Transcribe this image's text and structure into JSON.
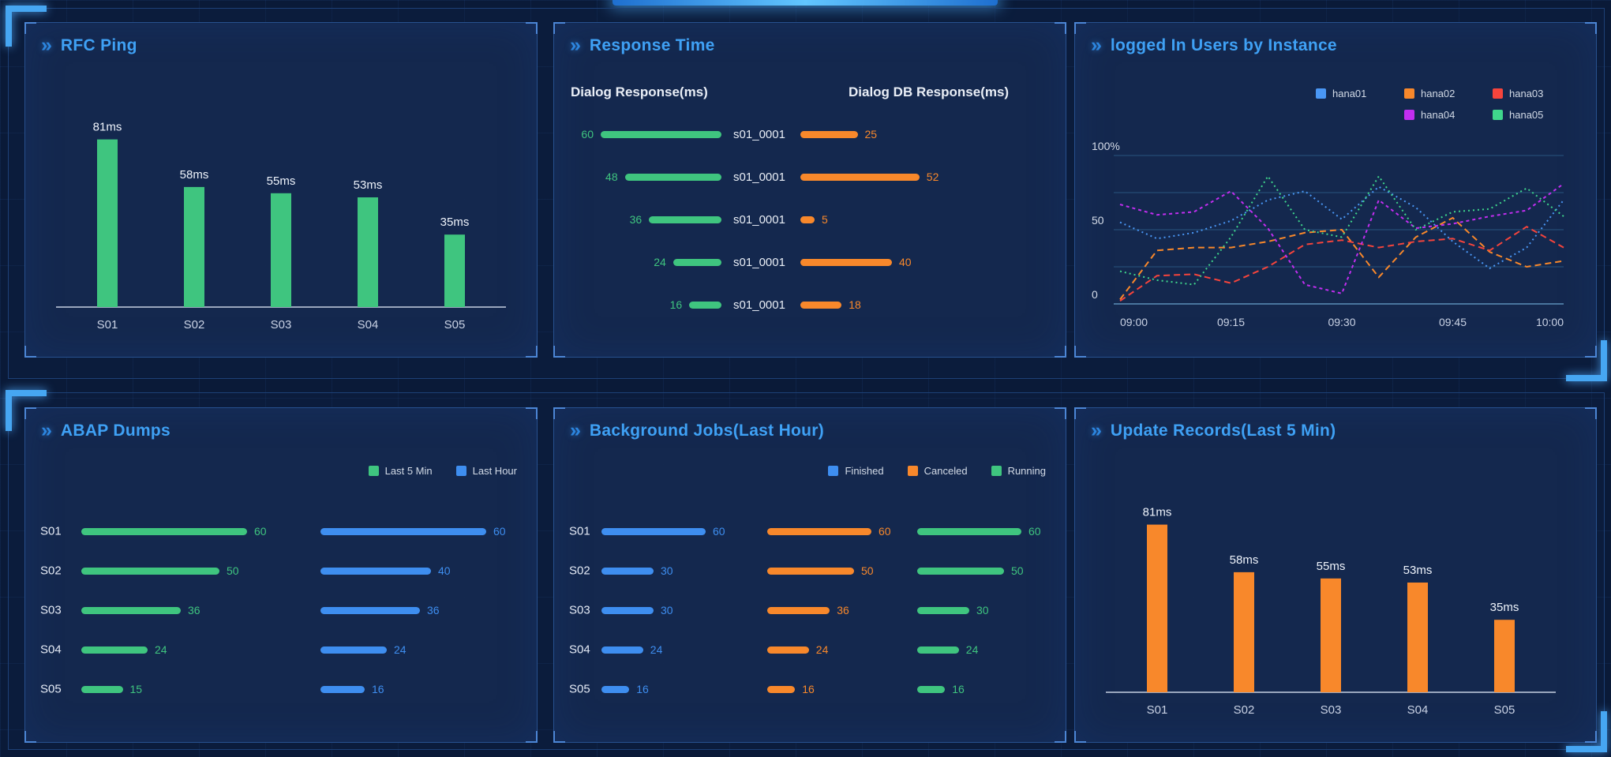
{
  "ui": {
    "chevron": "»"
  },
  "panels": [
    {
      "title": "RFC Ping"
    },
    {
      "title": "Response Time"
    },
    {
      "title": "logged In Users by Instance"
    },
    {
      "title": "ABAP Dumps"
    },
    {
      "title": "Background Jobs(Last Hour)"
    },
    {
      "title": "Update Records(Last 5 Min)"
    }
  ],
  "colors": {
    "green": "#3fc57f",
    "blue": "#3e8ef0",
    "orange": "#f8882b",
    "red": "#f5443c",
    "magenta": "#c22ef0",
    "line_blue": "#4a97f5",
    "line_green": "#3fd68c",
    "title_blue": "#3fa1f5"
  },
  "chart_data": [
    {
      "name": "rfc-ping",
      "type": "bar",
      "title": "RFC Ping",
      "categories": [
        "S01",
        "S02",
        "S03",
        "S04",
        "S05"
      ],
      "values": [
        81,
        58,
        55,
        53,
        35
      ],
      "unit": "ms",
      "value_labels": [
        "81ms",
        "58ms",
        "55ms",
        "53ms",
        "35ms"
      ],
      "color": "#3fc57f",
      "ylim": [
        0,
        90
      ],
      "grid": false
    },
    {
      "name": "response-time",
      "type": "bar-horizontal-dual",
      "title": "Response Time",
      "rows": [
        "s01_0001",
        "s01_0001",
        "s01_0001",
        "s01_0001",
        "s01_0001"
      ],
      "series": [
        {
          "name": "Dialog Response(ms)",
          "color": "#3fc57f",
          "values": [
            60,
            48,
            36,
            24,
            16
          ]
        },
        {
          "name": "Dialog DB Response(ms)",
          "color": "#f8882b",
          "values": [
            25,
            52,
            5,
            40,
            18
          ]
        }
      ]
    },
    {
      "name": "logged-in-users",
      "type": "line",
      "title": "logged In Users by Instance",
      "x": [
        "09:00",
        "09:15",
        "09:30",
        "09:45",
        "10:00"
      ],
      "ylim": [
        0,
        100
      ],
      "yticks": [
        "100%",
        "50",
        "0"
      ],
      "grid": true,
      "legend_position": "top-right",
      "series": [
        {
          "name": "hana01",
          "color": "#4a97f5",
          "values": [
            55,
            44,
            48,
            56,
            70,
            76,
            57,
            79,
            65,
            42,
            24,
            38,
            70
          ]
        },
        {
          "name": "hana02",
          "color": "#f8882b",
          "values": [
            3,
            36,
            38,
            38,
            42,
            48,
            50,
            18,
            45,
            58,
            35,
            25,
            29
          ]
        },
        {
          "name": "hana03",
          "color": "#f5443c",
          "values": [
            2,
            19,
            20,
            14,
            25,
            40,
            43,
            38,
            42,
            44,
            36,
            52,
            38
          ]
        },
        {
          "name": "hana04",
          "color": "#c22ef0",
          "values": [
            67,
            60,
            62,
            76,
            51,
            13,
            7,
            70,
            51,
            54,
            59,
            63,
            81
          ]
        },
        {
          "name": "hana05",
          "color": "#3fd68c",
          "values": [
            22,
            16,
            13,
            45,
            86,
            50,
            45,
            86,
            50,
            62,
            64,
            78,
            59
          ]
        }
      ]
    },
    {
      "name": "abap-dumps",
      "type": "bar-horizontal-group",
      "title": "ABAP Dumps",
      "categories": [
        "S01",
        "S02",
        "S03",
        "S04",
        "S05"
      ],
      "series": [
        {
          "name": "Last 5 Min",
          "color": "#3fc57f",
          "values": [
            60,
            50,
            36,
            24,
            15
          ]
        },
        {
          "name": "Last Hour",
          "color": "#3e8ef0",
          "values": [
            60,
            40,
            36,
            24,
            16
          ]
        }
      ]
    },
    {
      "name": "background-jobs",
      "type": "bar-horizontal-group",
      "title": "Background Jobs(Last Hour)",
      "categories": [
        "S01",
        "S02",
        "S03",
        "S04",
        "S05"
      ],
      "series": [
        {
          "name": "Finished",
          "color": "#3e8ef0",
          "values": [
            60,
            30,
            30,
            24,
            16
          ]
        },
        {
          "name": "Canceled",
          "color": "#f8882b",
          "values": [
            60,
            50,
            36,
            24,
            16
          ]
        },
        {
          "name": "Running",
          "color": "#3fc57f",
          "values": [
            60,
            50,
            30,
            24,
            16
          ]
        }
      ]
    },
    {
      "name": "update-records",
      "type": "bar",
      "title": "Update Records(Last 5 Min)",
      "categories": [
        "S01",
        "S02",
        "S03",
        "S04",
        "S05"
      ],
      "values": [
        81,
        58,
        55,
        53,
        35
      ],
      "unit": "ms",
      "value_labels": [
        "81ms",
        "58ms",
        "55ms",
        "53ms",
        "35ms"
      ],
      "color": "#f8882b",
      "ylim": [
        0,
        90
      ],
      "grid": false
    }
  ]
}
